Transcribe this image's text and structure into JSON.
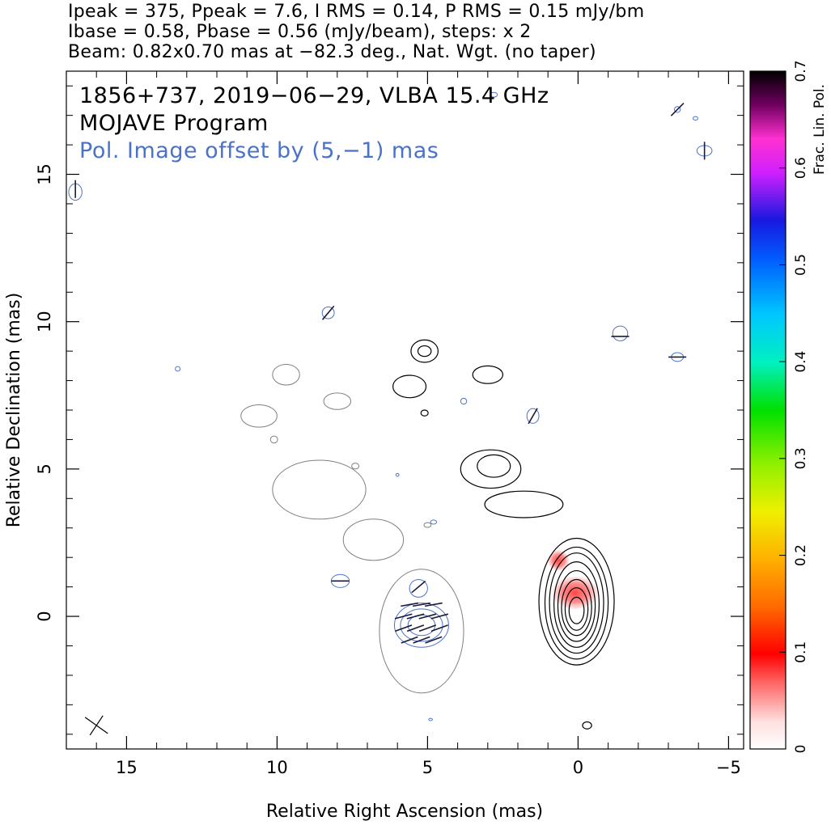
{
  "header": {
    "line1": "Ipeak = 375, Ppeak = 7.6, I RMS = 0.14, P RMS = 0.15 mJy/bm",
    "line2": "Ibase = 0.58, Pbase = 0.56 (mJy/beam), steps: x 2",
    "line3": "Beam: 0.82x0.70 mas at −82.3 deg., Nat. Wgt. (no taper)"
  },
  "annotations": {
    "source": "1856+737, 2019−06−29, VLBA 15.4 GHz",
    "program": "MOJAVE Program",
    "offset": "Pol. Image offset by (5,−1) mas"
  },
  "colors": {
    "total_intensity_contour": "#000000",
    "polarization_contour": "#4a72c9",
    "offset_text": "#4a72c9",
    "faint_contour": "#808080"
  },
  "chart_data": {
    "type": "contour",
    "xlabel": "Relative Right Ascension (mas)",
    "ylabel": "Relative Declination (mas)",
    "xlim": [
      17,
      -5.5
    ],
    "ylim": [
      -4.5,
      18.5
    ],
    "x_ticks": [
      {
        "v": 15,
        "label": "15"
      },
      {
        "v": 10,
        "label": "10"
      },
      {
        "v": 5,
        "label": "5"
      },
      {
        "v": 0,
        "label": "0"
      },
      {
        "v": -5,
        "label": "−5"
      }
    ],
    "y_ticks": [
      {
        "v": 0,
        "label": "0"
      },
      {
        "v": 5,
        "label": "5"
      },
      {
        "v": 10,
        "label": "10"
      },
      {
        "v": 15,
        "label": "15"
      }
    ],
    "colorbar": {
      "label": "Frac. Lin. Pol.",
      "range": [
        0,
        0.7
      ],
      "ticks": [
        {
          "v": 0,
          "label": "0"
        },
        {
          "v": 0.1,
          "label": "0.1"
        },
        {
          "v": 0.2,
          "label": "0.2"
        },
        {
          "v": 0.3,
          "label": "0.3"
        },
        {
          "v": 0.4,
          "label": "0.4"
        },
        {
          "v": 0.5,
          "label": "0.5"
        },
        {
          "v": 0.6,
          "label": "0.6"
        },
        {
          "v": 0.7,
          "label": "0.7"
        }
      ]
    },
    "total_intensity_contours": [
      {
        "x": 0.05,
        "y": 0.5,
        "rx": 1.25,
        "ry": 2.15
      },
      {
        "x": 0.05,
        "y": 0.45,
        "rx": 1.05,
        "ry": 1.9
      },
      {
        "x": 0.05,
        "y": 0.45,
        "rx": 0.9,
        "ry": 1.7
      },
      {
        "x": 0.05,
        "y": 0.4,
        "rx": 0.75,
        "ry": 1.45
      },
      {
        "x": 0.05,
        "y": 0.35,
        "rx": 0.62,
        "ry": 1.2
      },
      {
        "x": 0.05,
        "y": 0.3,
        "rx": 0.5,
        "ry": 0.95
      },
      {
        "x": 0.05,
        "y": 0.25,
        "rx": 0.38,
        "ry": 0.72
      },
      {
        "x": 0.05,
        "y": 0.2,
        "rx": 0.25,
        "ry": 0.45
      },
      {
        "x": 5.1,
        "y": 9.0,
        "rx": 0.45,
        "ry": 0.38
      },
      {
        "x": 5.1,
        "y": 9.0,
        "rx": 0.22,
        "ry": 0.18
      },
      {
        "x": 5.6,
        "y": 7.8,
        "rx": 0.55,
        "ry": 0.38
      },
      {
        "x": 3.0,
        "y": 8.2,
        "rx": 0.5,
        "ry": 0.3
      },
      {
        "x": 2.9,
        "y": 5.0,
        "rx": 1.0,
        "ry": 0.65
      },
      {
        "x": 2.8,
        "y": 5.1,
        "rx": 0.55,
        "ry": 0.38
      },
      {
        "x": 1.8,
        "y": 3.8,
        "rx": 1.3,
        "ry": 0.45
      },
      {
        "x": 5.1,
        "y": 6.9,
        "rx": 0.12,
        "ry": 0.1
      },
      {
        "x": -0.3,
        "y": -3.7,
        "rx": 0.15,
        "ry": 0.12
      }
    ],
    "faint_contours": [
      {
        "x": 5.2,
        "y": -0.5,
        "rx": 1.4,
        "ry": 2.1
      },
      {
        "x": 8.6,
        "y": 4.3,
        "rx": 1.55,
        "ry": 1.0
      },
      {
        "x": 6.8,
        "y": 2.6,
        "rx": 1.0,
        "ry": 0.7
      },
      {
        "x": 10.6,
        "y": 6.8,
        "rx": 0.6,
        "ry": 0.38
      },
      {
        "x": 9.7,
        "y": 8.2,
        "rx": 0.45,
        "ry": 0.35
      },
      {
        "x": 8.0,
        "y": 7.3,
        "rx": 0.45,
        "ry": 0.28
      },
      {
        "x": 10.1,
        "y": 6.0,
        "rx": 0.12,
        "ry": 0.12
      },
      {
        "x": 7.4,
        "y": 5.1,
        "rx": 0.12,
        "ry": 0.1
      },
      {
        "x": 5.0,
        "y": 3.1,
        "rx": 0.12,
        "ry": 0.08
      }
    ],
    "polarization_contours": [
      {
        "x": 5.2,
        "y": -0.3,
        "rx": 0.9,
        "ry": 0.75
      },
      {
        "x": 5.2,
        "y": -0.3,
        "rx": 0.7,
        "ry": 0.55
      },
      {
        "x": 5.2,
        "y": -0.3,
        "rx": 0.45,
        "ry": 0.35
      },
      {
        "x": 5.3,
        "y": 0.95,
        "rx": 0.3,
        "ry": 0.3
      },
      {
        "x": 7.9,
        "y": 1.2,
        "rx": 0.3,
        "ry": 0.22
      },
      {
        "x": 8.3,
        "y": 10.3,
        "rx": 0.2,
        "ry": 0.2
      },
      {
        "x": 16.7,
        "y": 14.4,
        "rx": 0.22,
        "ry": 0.28
      },
      {
        "x": 13.3,
        "y": 8.4,
        "rx": 0.08,
        "ry": 0.08
      },
      {
        "x": 3.8,
        "y": 7.3,
        "rx": 0.1,
        "ry": 0.1
      },
      {
        "x": 1.5,
        "y": 6.8,
        "rx": 0.2,
        "ry": 0.25
      },
      {
        "x": -1.4,
        "y": 9.6,
        "rx": 0.25,
        "ry": 0.25
      },
      {
        "x": -3.3,
        "y": 8.8,
        "rx": 0.2,
        "ry": 0.15
      },
      {
        "x": -4.2,
        "y": 15.8,
        "rx": 0.25,
        "ry": 0.18
      },
      {
        "x": -3.3,
        "y": 17.2,
        "rx": 0.1,
        "ry": 0.1
      },
      {
        "x": -3.9,
        "y": 16.9,
        "rx": 0.08,
        "ry": 0.06
      },
      {
        "x": 2.8,
        "y": 17.7,
        "rx": 0.12,
        "ry": 0.08
      },
      {
        "x": 6.0,
        "y": 4.8,
        "rx": 0.05,
        "ry": 0.05
      },
      {
        "x": 4.8,
        "y": 3.2,
        "rx": 0.1,
        "ry": 0.07
      },
      {
        "x": 4.9,
        "y": -3.5,
        "rx": 0.06,
        "ry": 0.04
      }
    ],
    "evpa_vectors": [
      {
        "x": 5.6,
        "y": 0.4,
        "angle": 10
      },
      {
        "x": 5.2,
        "y": 0.4,
        "angle": 10
      },
      {
        "x": 4.8,
        "y": 0.4,
        "angle": 10
      },
      {
        "x": 5.8,
        "y": 0.0,
        "angle": 15
      },
      {
        "x": 5.4,
        "y": 0.0,
        "angle": 15
      },
      {
        "x": 5.0,
        "y": 0.0,
        "angle": 15
      },
      {
        "x": 4.6,
        "y": 0.0,
        "angle": 15
      },
      {
        "x": 5.8,
        "y": -0.4,
        "angle": 20
      },
      {
        "x": 5.4,
        "y": -0.4,
        "angle": 20
      },
      {
        "x": 5.0,
        "y": -0.4,
        "angle": 20
      },
      {
        "x": 4.6,
        "y": -0.4,
        "angle": 20
      },
      {
        "x": 5.6,
        "y": -0.8,
        "angle": 20
      },
      {
        "x": 5.2,
        "y": -0.8,
        "angle": 20
      },
      {
        "x": 4.8,
        "y": -0.8,
        "angle": 20
      },
      {
        "x": 5.3,
        "y": 1.0,
        "angle": 40
      },
      {
        "x": 7.9,
        "y": 1.2,
        "angle": 0
      },
      {
        "x": 8.3,
        "y": 10.3,
        "angle": 50
      },
      {
        "x": 16.7,
        "y": 14.5,
        "angle": 90
      },
      {
        "x": 1.5,
        "y": 6.8,
        "angle": 60
      },
      {
        "x": -1.4,
        "y": 9.5,
        "angle": 0
      },
      {
        "x": -3.3,
        "y": 8.8,
        "angle": 0
      },
      {
        "x": -4.2,
        "y": 15.8,
        "angle": 90
      },
      {
        "x": -3.3,
        "y": 17.2,
        "angle": 45
      }
    ],
    "fractional_polarization_patches": [
      {
        "x": 0.65,
        "y": 1.9,
        "rx": 0.35,
        "ry": 0.35,
        "value": 0.12
      },
      {
        "x": 0.1,
        "y": 0.8,
        "rx": 0.75,
        "ry": 0.55,
        "value": 0.05
      }
    ],
    "beam": {
      "x": 16.0,
      "y": -3.7
    }
  }
}
